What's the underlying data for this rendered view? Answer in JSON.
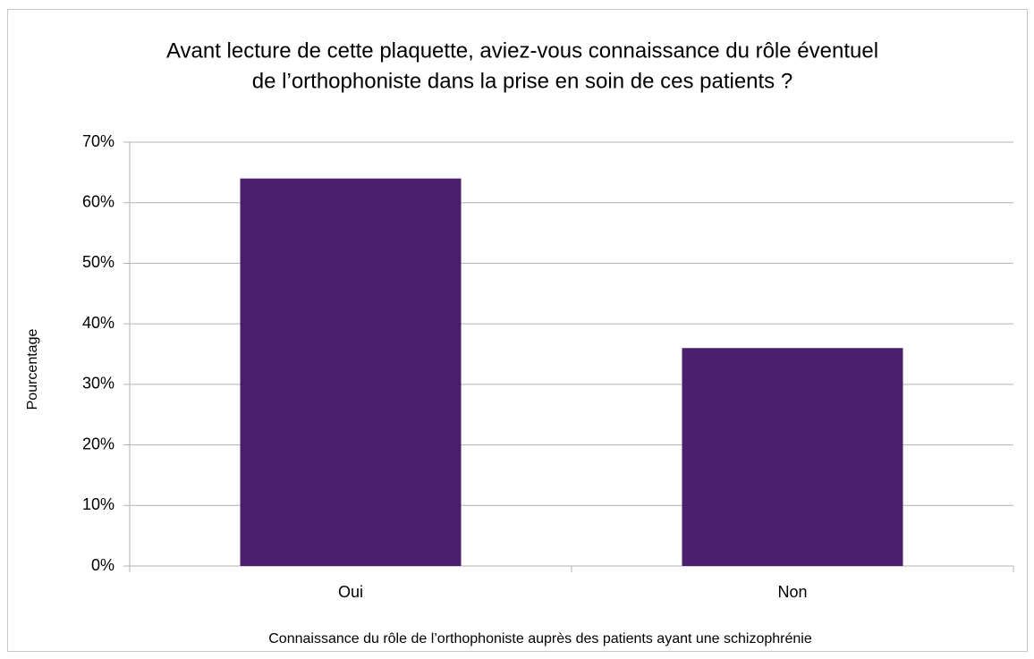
{
  "chart_data": {
    "type": "bar",
    "title": [
      "Avant lecture de cette plaquette, aviez-vous connaissance du rôle éventuel",
      "de l’orthophoniste dans la prise en soin de ces patients ?"
    ],
    "x_label": "Connaissance du rôle de l’orthophoniste auprès des patients ayant une schizophrénie",
    "y_label": "Pourcentage",
    "categories": [
      "Oui",
      "Non"
    ],
    "values": [
      64,
      36
    ],
    "color": "#4b1f6b",
    "ylim": [
      0,
      70
    ],
    "yticks": [
      {
        "value": 0,
        "label": "0%"
      },
      {
        "value": 10,
        "label": "10%"
      },
      {
        "value": 20,
        "label": "20%"
      },
      {
        "value": 30,
        "label": "30%"
      },
      {
        "value": 40,
        "label": "40%"
      },
      {
        "value": 50,
        "label": "50%"
      },
      {
        "value": 60,
        "label": "60%"
      },
      {
        "value": 70,
        "label": "70%"
      }
    ],
    "grid": true
  }
}
